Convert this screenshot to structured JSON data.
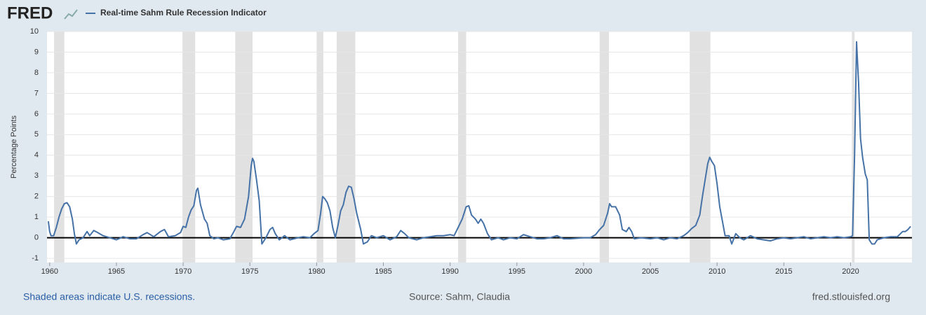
{
  "logo": "FRED",
  "chart_data": {
    "type": "line",
    "y_label": "Percentage Points",
    "recessions": [
      [
        1960.33,
        1961.1
      ],
      [
        1969.95,
        1970.9
      ],
      [
        1973.9,
        1975.2
      ],
      [
        1980.0,
        1980.5
      ],
      [
        1981.5,
        1982.9
      ],
      [
        1990.6,
        1991.2
      ],
      [
        2001.2,
        2001.9
      ],
      [
        2007.95,
        2009.5
      ],
      [
        2020.1,
        2020.3
      ]
    ],
    "recession_color": "#e1e1e1",
    "xlim": [
      1959.8,
      2024.6
    ],
    "ylim": [
      -1.2,
      10
    ],
    "xticks": [
      1960,
      1965,
      1970,
      1975,
      1980,
      1985,
      1990,
      1995,
      2000,
      2005,
      2010,
      2015,
      2020
    ],
    "yticks": [
      -1,
      0,
      1,
      2,
      3,
      4,
      5,
      6,
      7,
      8,
      9,
      10
    ],
    "grid": true,
    "x": [
      1959.9,
      1960.0,
      1960.1,
      1960.3,
      1960.5,
      1960.7,
      1960.9,
      1961.1,
      1961.3,
      1961.5,
      1961.7,
      1961.85,
      1962.0,
      1962.2,
      1962.5,
      1962.8,
      1963.0,
      1963.3,
      1963.6,
      1964.0,
      1964.5,
      1965.0,
      1965.5,
      1966.0,
      1966.5,
      1967.0,
      1967.3,
      1967.8,
      1968.3,
      1968.6,
      1968.9,
      1969.4,
      1969.8,
      1970.0,
      1970.2,
      1970.4,
      1970.6,
      1970.8,
      1971.0,
      1971.1,
      1971.3,
      1971.6,
      1971.8,
      1972.0,
      1972.3,
      1972.6,
      1973.0,
      1973.5,
      1973.8,
      1974.0,
      1974.3,
      1974.6,
      1974.9,
      1975.1,
      1975.2,
      1975.3,
      1975.5,
      1975.7,
      1975.9,
      1976.2,
      1976.5,
      1976.7,
      1976.9,
      1977.2,
      1977.6,
      1978.0,
      1978.6,
      1979.0,
      1979.5,
      1979.8,
      1980.1,
      1980.3,
      1980.45,
      1980.6,
      1980.8,
      1981.0,
      1981.2,
      1981.4,
      1981.6,
      1981.8,
      1982.0,
      1982.2,
      1982.4,
      1982.6,
      1982.8,
      1983.0,
      1983.3,
      1983.5,
      1983.8,
      1984.1,
      1984.5,
      1985.0,
      1985.5,
      1986.0,
      1986.3,
      1986.6,
      1986.9,
      1987.5,
      1988.0,
      1988.5,
      1989.0,
      1989.5,
      1990.0,
      1990.3,
      1990.6,
      1990.9,
      1991.2,
      1991.4,
      1991.6,
      1991.9,
      1992.1,
      1992.3,
      1992.5,
      1992.8,
      1993.1,
      1993.6,
      1994.0,
      1994.5,
      1995.0,
      1995.5,
      1996.0,
      1996.5,
      1997.0,
      1997.5,
      1998.0,
      1998.5,
      1999.0,
      2000.0,
      2000.5,
      2000.9,
      2001.2,
      2001.5,
      2001.8,
      2001.95,
      2002.1,
      2002.4,
      2002.7,
      2002.9,
      2003.2,
      2003.4,
      2003.6,
      2003.8,
      2004.3,
      2005.0,
      2005.5,
      2006.0,
      2006.5,
      2007.0,
      2007.5,
      2007.8,
      2008.1,
      2008.4,
      2008.7,
      2008.9,
      2009.1,
      2009.3,
      2009.45,
      2009.6,
      2009.8,
      2010.0,
      2010.2,
      2010.4,
      2010.6,
      2010.9,
      2011.1,
      2011.4,
      2011.7,
      2012.0,
      2012.5,
      2013.0,
      2013.5,
      2014.0,
      2014.5,
      2015.0,
      2015.5,
      2016.0,
      2016.5,
      2017.0,
      2017.5,
      2018.0,
      2018.5,
      2019.0,
      2019.5,
      2020.0,
      2020.15,
      2020.3,
      2020.45,
      2020.6,
      2020.75,
      2020.9,
      2021.1,
      2021.25,
      2021.4,
      2021.6,
      2021.8,
      2022.0,
      2022.5,
      2023.0,
      2023.5,
      2023.9,
      2024.1,
      2024.3,
      2024.5
    ],
    "series": [
      {
        "name": "Real-time Sahm Rule Recession Indicator",
        "color": "#4572a7",
        "values": [
          0.8,
          0.3,
          0.1,
          0.1,
          0.5,
          1.0,
          1.4,
          1.65,
          1.7,
          1.5,
          0.9,
          0.2,
          -0.3,
          -0.1,
          0.0,
          0.3,
          0.1,
          0.35,
          0.25,
          0.1,
          0.0,
          -0.1,
          0.05,
          -0.05,
          -0.05,
          0.15,
          0.25,
          0.05,
          0.3,
          0.4,
          0.05,
          0.1,
          0.25,
          0.55,
          0.5,
          1.0,
          1.35,
          1.55,
          2.3,
          2.4,
          1.6,
          0.9,
          0.7,
          0.1,
          -0.05,
          0.0,
          -0.1,
          -0.05,
          0.3,
          0.55,
          0.5,
          0.9,
          2.0,
          3.5,
          3.85,
          3.7,
          2.8,
          1.8,
          -0.3,
          0.0,
          0.4,
          0.5,
          0.2,
          -0.1,
          0.1,
          -0.1,
          0.0,
          0.05,
          0.0,
          0.2,
          0.35,
          1.2,
          2.0,
          1.9,
          1.7,
          1.3,
          0.5,
          0.0,
          0.6,
          1.3,
          1.6,
          2.2,
          2.5,
          2.45,
          1.9,
          1.2,
          0.4,
          -0.3,
          -0.2,
          0.1,
          0.0,
          0.1,
          -0.1,
          0.05,
          0.35,
          0.2,
          0.0,
          -0.1,
          0.0,
          0.05,
          0.1,
          0.1,
          0.15,
          0.1,
          0.5,
          0.9,
          1.5,
          1.55,
          1.1,
          0.9,
          0.7,
          0.9,
          0.7,
          0.2,
          -0.1,
          0.0,
          -0.1,
          0.0,
          -0.05,
          0.15,
          0.05,
          -0.05,
          -0.05,
          0.0,
          0.1,
          -0.05,
          -0.05,
          0.0,
          0.0,
          0.15,
          0.4,
          0.6,
          1.2,
          1.65,
          1.5,
          1.5,
          1.1,
          0.4,
          0.3,
          0.5,
          0.3,
          -0.05,
          0.0,
          -0.05,
          0.0,
          -0.1,
          0.0,
          -0.05,
          0.1,
          0.25,
          0.45,
          0.6,
          1.1,
          2.0,
          2.8,
          3.6,
          3.9,
          3.7,
          3.5,
          2.6,
          1.5,
          0.8,
          0.1,
          0.1,
          -0.3,
          0.2,
          0.0,
          -0.1,
          0.1,
          -0.05,
          -0.1,
          -0.15,
          -0.05,
          0.0,
          -0.05,
          0.0,
          0.05,
          -0.05,
          0.0,
          0.05,
          0.0,
          0.05,
          0.0,
          0.05,
          0.1,
          4.0,
          9.5,
          7.5,
          4.8,
          3.9,
          3.1,
          2.8,
          -0.1,
          -0.3,
          -0.3,
          -0.1,
          0.0,
          0.05,
          0.05,
          0.3,
          0.3,
          0.4,
          0.55
        ]
      }
    ]
  },
  "footer": {
    "note": "Shaded areas indicate U.S. recessions.",
    "source": "Source: Sahm, Claudia",
    "site": "fred.stlouisfed.org"
  }
}
